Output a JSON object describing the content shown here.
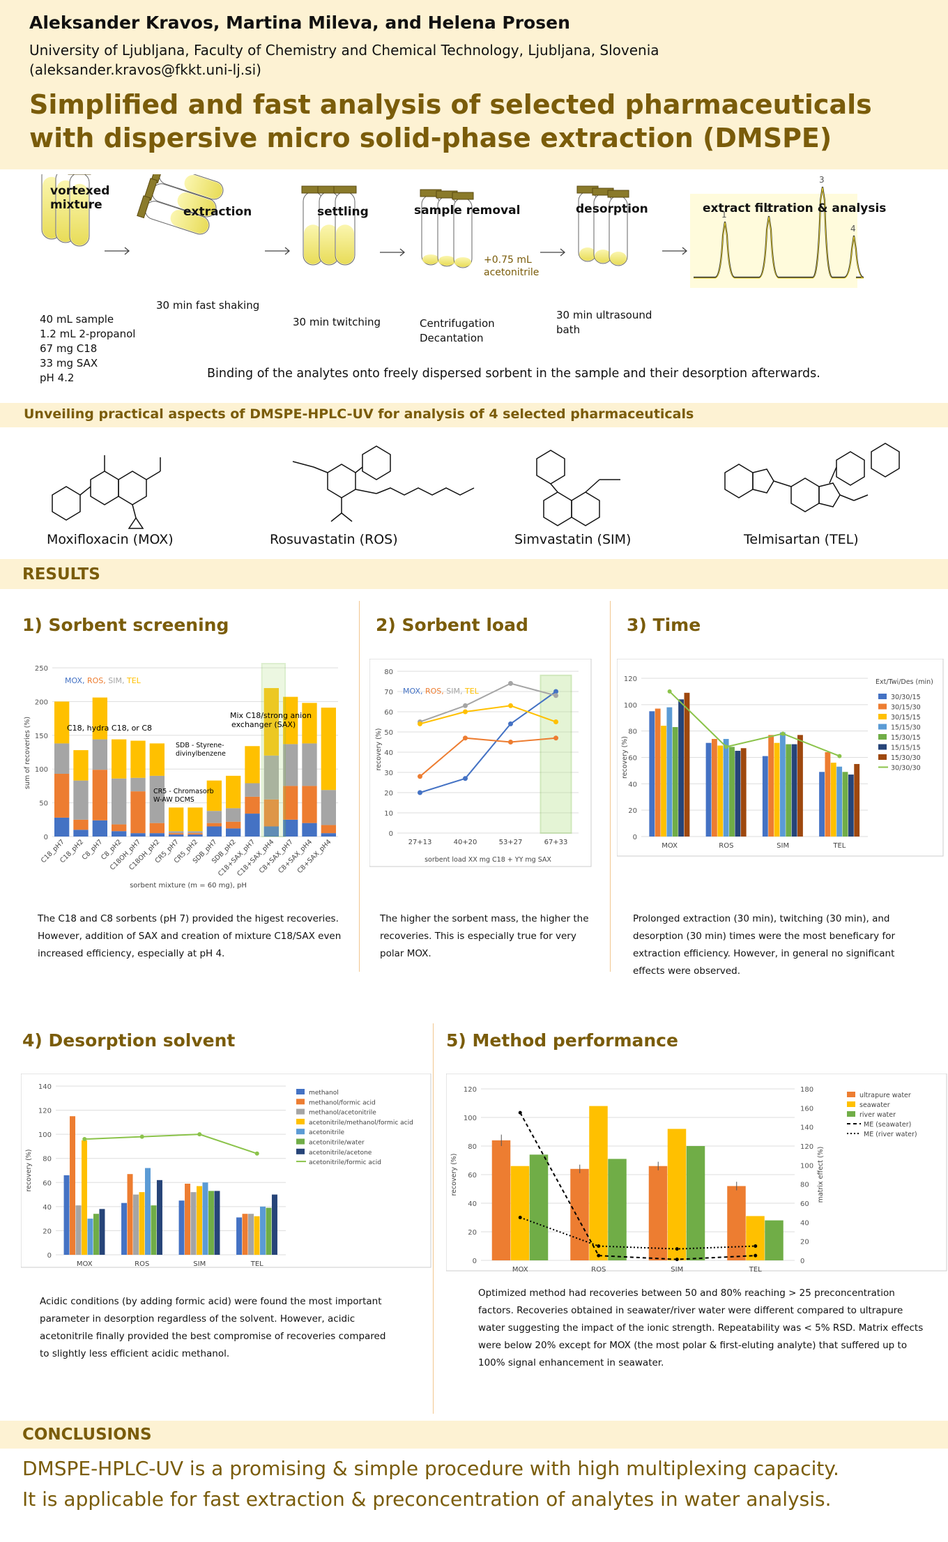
{
  "header": {
    "authors": "Aleksander Kravos, Martina Mileva, and Helena Prosen",
    "affiliation": "University of Ljubljana, Faculty of Chemistry and Chemical Technology, Ljubljana, Slovenia",
    "email": "(aleksander.kravos@fkkt.uni-lj.si)",
    "title": "Simplified and fast analysis of selected pharmaceuticals with dispersive micro solid-phase extraction (DMSPE)"
  },
  "workflow": {
    "s1": "vortexed",
    "s1b": "mixture",
    "s2": "extraction",
    "s3": "settling",
    "s4": "sample removal",
    "s5": "desorption",
    "s6": "extract filtration & analysis",
    "recipe": [
      "40 mL sample",
      "1.2 mL 2-propanol",
      "67 mg C18",
      "33 mg SAX",
      "pH 4.2"
    ],
    "shaking": "30 min fast shaking",
    "twitching": "30 min twitching",
    "centrif": "Centrifugation",
    "decant": "Decantation",
    "acn1": "+0.75 mL",
    "acn2": "acetonitrile",
    "us1": "30 min ultrasound",
    "us2": "bath",
    "peaks": [
      "1",
      "2",
      "3",
      "4"
    ],
    "caption": "Binding of the analytes onto freely dispersed sorbent in the sample and their desorption afterwards."
  },
  "unveil": "Unveiling practical aspects of DMSPE-HPLC-UV for analysis of 4 selected pharmaceuticals",
  "molecules": [
    "Moxifloxacin (MOX)",
    "Rosuvastatin (ROS)",
    "Simvastatin (SIM)",
    "Telmisartan (TEL)"
  ],
  "results": "RESULTS",
  "sections": {
    "s1": "1)",
    "s1t": "Sorbent screening",
    "s2": "2) Sorbent load",
    "s3": "3) Time",
    "s4": "4) Desorption solvent",
    "s5": "5) Method performance"
  },
  "texts": {
    "t1": "The C18 and C8 sorbents (pH 7) provided the higest recoveries. However, addition of SAX and creation of mixture C18/SAX even increased efficiency, especially at pH 4.",
    "t2": "The higher the sorbent mass, the higher the recoveries. This is especially true for very polar MOX.",
    "t3": "Prolonged extraction (30 min), twitching (30 min), and desorption (30 min) times were the most beneficary for extraction efficiency. However, in general no significant effects were observed.",
    "t4": "Acidic conditions (by adding formic acid) were found the most important parameter in desorption regardless of the solvent. However, acidic acetonitrile finally provided the best compromise of recoveries compared to slightly less efficient acidic methanol.",
    "t5": "Optimized method had recoveries between 50 and 80% reaching > 25 preconcentration factors. Recoveries obtained in seawater/river water were different compared to ultrapure water suggesting the impact of the ionic strength. Repeatability was < 5% RSD. Matrix effects were below 20% except for MOX (the most polar & first-eluting analyte) that suffered up to 100% signal enhancement in seawater."
  },
  "conclusions": {
    "head": "CONCLUSIONS",
    "l1": "DMSPE-HPLC-UV is a promising & simple procedure with high multiplexing capacity.",
    "l2": "It is applicable for fast extraction & preconcentration of analytes in water analysis."
  },
  "colors": {
    "MOX": "#4472c4",
    "ROS": "#ed7d31",
    "SIM": "#a5a5a5",
    "TEL": "#ffc000"
  },
  "chart_data": [
    {
      "id": "c1",
      "type": "bar",
      "stacked": true,
      "legend": [
        "MOX",
        "ROS",
        "SIM",
        "TEL"
      ],
      "ylabel": "sum of recoveries (%)",
      "xlabel": "sorbent mixture (m = 60 mg), pH",
      "ylim": [
        0,
        250
      ],
      "yticks": [
        0,
        50,
        100,
        150,
        200,
        250
      ],
      "categories": [
        "C18_pH7",
        "C18_pH2",
        "C8_pH7",
        "C8_pH2",
        "C18OH_pH7",
        "C18OH_pH2",
        "CR5_pH7",
        "CR5_pH2",
        "SDB_pH7",
        "SDB_pH2",
        "C18+SAX_pH7",
        "C18+SAX_pH4",
        "C8+SAX_pH7",
        "C8+SAX_pH4",
        "C8+SAX_pH4"
      ],
      "series": [
        {
          "name": "MOX",
          "values": [
            28,
            10,
            24,
            8,
            5,
            5,
            3,
            3,
            15,
            12,
            34,
            15,
            25,
            20,
            5
          ]
        },
        {
          "name": "ROS",
          "values": [
            65,
            15,
            75,
            10,
            62,
            15,
            2,
            2,
            5,
            10,
            25,
            40,
            50,
            55,
            12
          ]
        },
        {
          "name": "SIM",
          "values": [
            45,
            58,
            45,
            68,
            20,
            70,
            3,
            3,
            18,
            20,
            20,
            65,
            62,
            63,
            52
          ]
        },
        {
          "name": "TEL",
          "values": [
            62,
            45,
            62,
            58,
            55,
            48,
            35,
            35,
            45,
            48,
            55,
            100,
            70,
            60,
            122
          ]
        }
      ],
      "annotations": [
        "C18, hydra C18, or C8",
        "SDB - Styrene-",
        "divinylbenzene",
        "CR5 - Chromasorb",
        "W-AW DCMS",
        "Mix C18/strong anion",
        "exchanger (SAX)"
      ]
    },
    {
      "id": "c2",
      "type": "line",
      "legend": [
        "MOX",
        "ROS",
        "SIM",
        "TEL"
      ],
      "ylabel": "recovery (%)",
      "xlabel": "sorbent load XX mg C18 + YY mg SAX",
      "ylim": [
        0,
        80
      ],
      "yticks": [
        0,
        10,
        20,
        30,
        40,
        50,
        60,
        70,
        80
      ],
      "categories": [
        "27+13",
        "40+20",
        "53+27",
        "67+33"
      ],
      "series": [
        {
          "name": "MOX",
          "values": [
            20,
            27,
            54,
            70
          ]
        },
        {
          "name": "ROS",
          "values": [
            28,
            47,
            45,
            47
          ]
        },
        {
          "name": "SIM",
          "values": [
            55,
            63,
            74,
            68
          ]
        },
        {
          "name": "TEL",
          "values": [
            54,
            60,
            63,
            55
          ]
        }
      ]
    },
    {
      "id": "c3",
      "type": "bar",
      "legend_title": "Ext/Twi/Des (min)",
      "ylabel": "recovery (%)",
      "ylim": [
        0,
        120
      ],
      "yticks": [
        0,
        20,
        40,
        60,
        80,
        100,
        120
      ],
      "categories": [
        "MOX",
        "ROS",
        "SIM",
        "TEL"
      ],
      "series": [
        {
          "name": "30/30/15",
          "color": "#4472c4",
          "values": [
            95,
            71,
            61,
            49
          ]
        },
        {
          "name": "30/15/30",
          "color": "#ed7d31",
          "values": [
            97,
            74,
            77,
            64
          ]
        },
        {
          "name": "30/15/15",
          "color": "#ffc000",
          "values": [
            84,
            69,
            71,
            56
          ]
        },
        {
          "name": "15/15/30",
          "color": "#5b9bd5",
          "values": [
            98,
            74,
            79,
            53
          ]
        },
        {
          "name": "15/30/15",
          "color": "#70ad47",
          "values": [
            83,
            68,
            70,
            49
          ]
        },
        {
          "name": "15/15/15",
          "color": "#264478",
          "values": [
            104,
            65,
            70,
            47
          ]
        },
        {
          "name": "15/30/30",
          "color": "#9e480e",
          "values": [
            109,
            67,
            77,
            55
          ]
        }
      ],
      "line": {
        "name": "30/30/30",
        "color": "#8bc34a",
        "values": [
          110,
          68,
          78,
          61
        ]
      }
    },
    {
      "id": "c4",
      "type": "bar",
      "ylabel": "recovery (%)",
      "ylim": [
        0,
        140
      ],
      "yticks": [
        0,
        20,
        40,
        60,
        80,
        100,
        120,
        140
      ],
      "categories": [
        "MOX",
        "ROS",
        "SIM",
        "TEL"
      ],
      "series": [
        {
          "name": "methanol",
          "color": "#4472c4",
          "values": [
            66,
            43,
            45,
            31
          ]
        },
        {
          "name": "methanol/formic acid",
          "color": "#ed7d31",
          "values": [
            115,
            67,
            59,
            34
          ]
        },
        {
          "name": "methanol/acetonitrile",
          "color": "#a5a5a5",
          "values": [
            41,
            50,
            52,
            34
          ]
        },
        {
          "name": "acetonitrile/methanol/formic acid",
          "color": "#ffc000",
          "values": [
            95,
            52,
            57,
            32
          ]
        },
        {
          "name": "acetonitrile",
          "color": "#5b9bd5",
          "values": [
            30,
            72,
            60,
            40
          ]
        },
        {
          "name": "acetonitrile/water",
          "color": "#70ad47",
          "values": [
            34,
            41,
            53,
            39
          ]
        },
        {
          "name": "acetonitrile/acetone",
          "color": "#264478",
          "values": [
            38,
            62,
            53,
            50
          ]
        }
      ],
      "line": {
        "name": "acetonitrile/formic acid",
        "color": "#8bc34a",
        "values": [
          96,
          98,
          100,
          84
        ]
      }
    },
    {
      "id": "c5",
      "type": "bar",
      "ylabel": "recovery (%)",
      "y2label": "matrix effect (%)",
      "ylim": [
        0,
        120
      ],
      "yticks": [
        0,
        20,
        40,
        60,
        80,
        100,
        120
      ],
      "y2lim": [
        0,
        180
      ],
      "y2ticks": [
        0,
        20,
        40,
        60,
        80,
        100,
        120,
        140,
        160,
        180
      ],
      "categories": [
        "MOX",
        "ROS",
        "SIM",
        "TEL"
      ],
      "series": [
        {
          "name": "ultrapure water",
          "color": "#ed7d31",
          "values": [
            84,
            64,
            66,
            52
          ]
        },
        {
          "name": "seawater",
          "color": "#ffc000",
          "values": [
            66,
            108,
            92,
            31
          ]
        },
        {
          "name": "river water",
          "color": "#70ad47",
          "values": [
            74,
            71,
            80,
            28
          ]
        }
      ],
      "lines": [
        {
          "name": "ME (seawater)",
          "values": [
            155,
            5,
            1,
            5
          ]
        },
        {
          "name": "ME (river water)",
          "values": [
            45,
            15,
            12,
            15
          ]
        }
      ]
    }
  ]
}
